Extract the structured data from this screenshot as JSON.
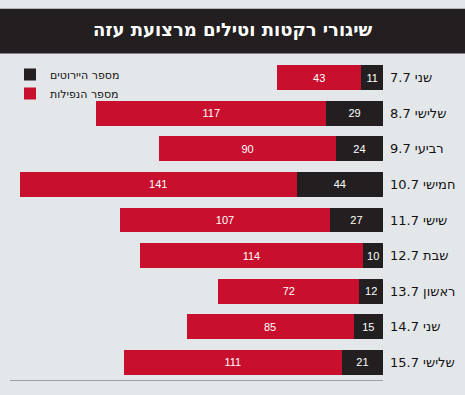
{
  "chart_data": {
    "type": "bar",
    "title": "שיגורי רקטות וטילים מרצועת עזה",
    "orientation": "horizontal",
    "stacked": true,
    "data_labels": true,
    "tick_labels": "y",
    "legend": "top-left",
    "grid": false,
    "categories": [
      "שני 7.7",
      "שלישי 8.7",
      "רביעי 9.7",
      "חמישי 10.7",
      "שישי 11.7",
      "שבת 12.7",
      "ראשון 13.7",
      "שני 14.7",
      "שלישי 15.7"
    ],
    "series": [
      {
        "name": "מספר היירוטים",
        "color": "#231f20",
        "values": [
          11,
          29,
          24,
          44,
          27,
          10,
          12,
          15,
          21
        ]
      },
      {
        "name": "מספר הנפילות",
        "color": "#c8102e",
        "values": [
          43,
          117,
          90,
          141,
          107,
          114,
          72,
          85,
          111
        ]
      }
    ],
    "xlim": [
      0,
      190
    ]
  }
}
